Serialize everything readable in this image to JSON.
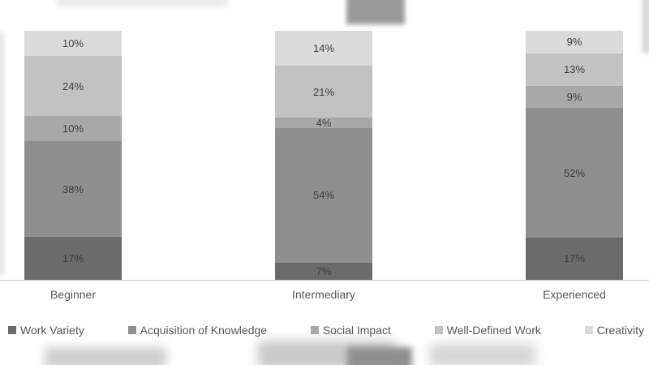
{
  "chart_data": {
    "type": "bar",
    "subtype": "stacked-100-percent-column",
    "title": "",
    "xlabel": "",
    "ylabel": "",
    "ylim": [
      0,
      100
    ],
    "grid": false,
    "legend_position": "bottom",
    "value_labels": true,
    "value_label_suffix": "%",
    "categories": [
      "Beginner",
      "Intermediary",
      "Experienced"
    ],
    "series": [
      {
        "name": "Work Variety",
        "color": "#6b6b6b",
        "values": [
          17,
          7,
          17
        ]
      },
      {
        "name": "Acquisition of Knowledge",
        "color": "#8f8f8f",
        "values": [
          38,
          54,
          52
        ]
      },
      {
        "name": "Social Impact",
        "color": "#a8a8a8",
        "values": [
          10,
          4,
          9
        ]
      },
      {
        "name": "Well-Defined Work",
        "color": "#c2c2c2",
        "values": [
          24,
          21,
          13
        ]
      },
      {
        "name": "Creativity",
        "color": "#dadada",
        "values": [
          10,
          14,
          9
        ]
      }
    ],
    "axis_line_color": "#d0d0d0",
    "label_color": "#3f3f3f",
    "category_label_color": "#595959"
  }
}
